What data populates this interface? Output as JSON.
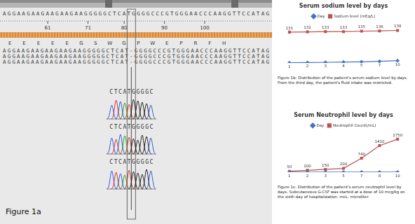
{
  "figure_1a": {
    "label": "Figure 1a",
    "reference_sequence": "AGGAAGAAGAAGAAGAAGGGGGCTCATGGGGCCCGTGGGAACCCAAGGTTCCATAG",
    "ruler": [
      61,
      71,
      80,
      90,
      100
    ],
    "translation": [
      "E",
      "E",
      "E",
      "E",
      "E",
      "G",
      "S",
      "W",
      "G",
      "P",
      "W",
      "E",
      "P",
      "R",
      "F",
      "H"
    ],
    "reads": [
      "AGGAAGAAGAAGAAGAAGGGGGCTCAT-GGGGCCCGTGGGAACCCAAGGTTCCATAG",
      "AGGAAGAAGAAGAAGAAGGGGGCTCAT-GGGGCCCGTGGGAACCCAAGGTTCCATAG",
      "AGGAAGAAGAAGAAGAAGGGGGCTCAT-GGGGCCCGTGGGAACCCAAGGTTCCATAG"
    ],
    "trace_labels": [
      "CTCATGGGGC",
      "CTCATGGGGC",
      "CTCATGGGGC"
    ]
  },
  "chart_data": [
    {
      "type": "line",
      "title": "Serum sodium level by days",
      "categories": [
        null,
        null,
        null,
        null,
        null,
        null,
        null
      ],
      "series": [
        {
          "name": "Day",
          "color": "#4472c4",
          "marker": "diamond",
          "line_style": "solid",
          "values": [
            1,
            2,
            3,
            4,
            5,
            7,
            10
          ]
        },
        {
          "name": "Sodium level (mEq/L)",
          "color": "#c0504d",
          "marker": "square",
          "line_style": "solid",
          "values": [
            131,
            132,
            133,
            133,
            135,
            136,
            138
          ]
        }
      ],
      "ylim": [
        0,
        160
      ],
      "yticks": [
        0,
        40,
        80,
        120,
        160
      ],
      "grid": false,
      "legend": "top",
      "data_labels": true,
      "tick_labels": false,
      "caption": "Figure 1b: Distribution of the patient's serum sodium level by days. From the third day, the patient's fluid intake was restricted."
    },
    {
      "type": "line",
      "title": "Serum Neutrophil level by days",
      "categories": [
        null,
        null,
        null,
        null,
        null,
        null,
        null
      ],
      "series": [
        {
          "name": "Day",
          "color": "#4472c4",
          "marker": "diamond",
          "line_style": "solid",
          "values": [
            1,
            2,
            3,
            5,
            7,
            8,
            10
          ]
        },
        {
          "name": "Neutrophil Count(/mL)",
          "color": "#c0504d",
          "marker": "square",
          "line_style": "solid",
          "values": [
            50,
            100,
            150,
            200,
            740,
            1410,
            1750
          ]
        }
      ],
      "ylim": [
        0,
        2000
      ],
      "yticks": [
        0,
        500,
        1000,
        1500,
        2000
      ],
      "grid": false,
      "legend": "top",
      "data_labels": true,
      "tick_labels": false,
      "caption": "Figure 1c: Distribution of the patient's serum neutrophil level by days. Subcutaneous G-CSF was started at a dose of 10 mcg/kg on the sixth day of hospitalization. mcL: microliter"
    }
  ]
}
